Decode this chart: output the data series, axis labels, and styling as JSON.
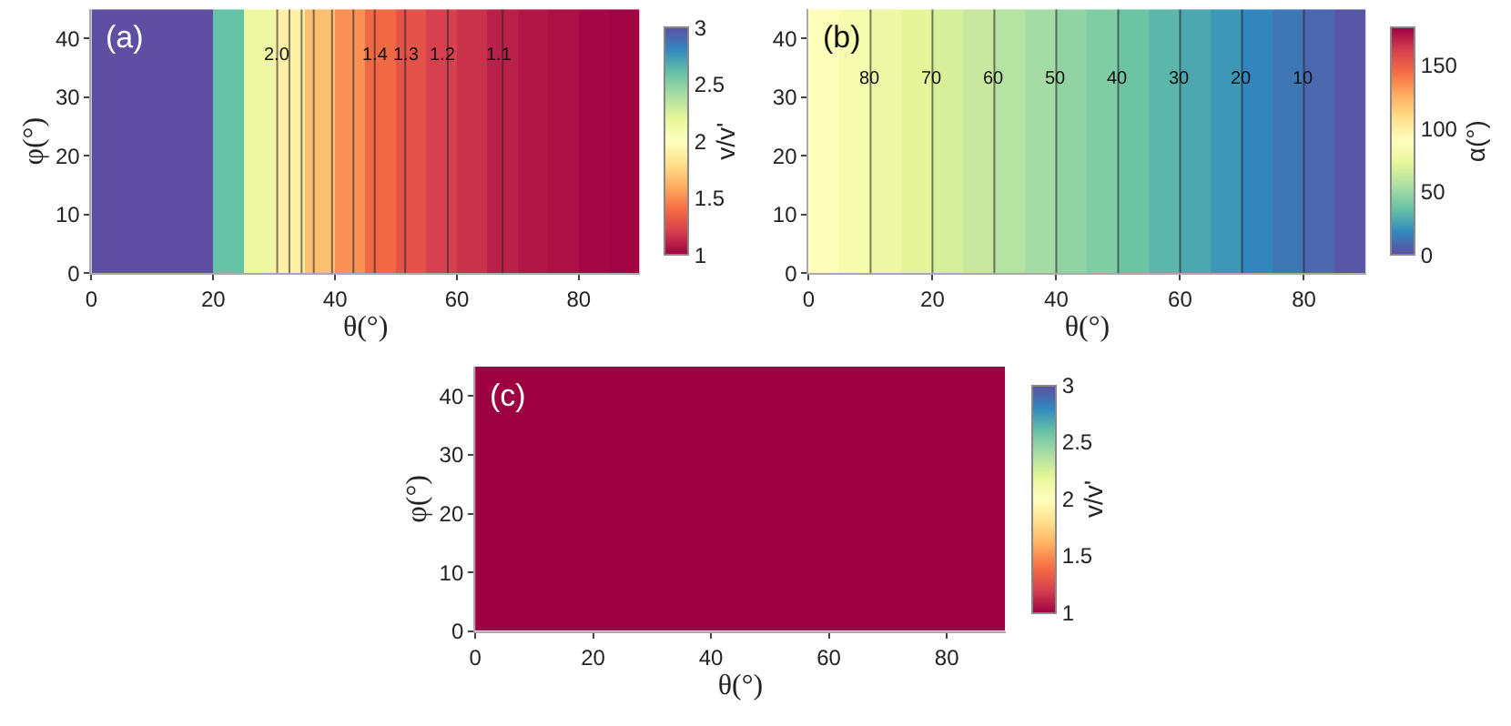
{
  "chart_data": [
    {
      "type": "heatmap",
      "annotations": [
        "(a)",
        {
          "text": "2.0",
          "x": 30.5,
          "y": 37
        },
        {
          "text": "1.4",
          "x": 46.5,
          "y": 37
        },
        {
          "text": "1.3",
          "x": 51.5,
          "y": 37
        },
        {
          "text": "1.2",
          "x": 57.5,
          "y": 37
        },
        {
          "text": "1.1",
          "x": 67,
          "y": 37
        }
      ],
      "xlabel": "θ(°)",
      "ylabel": "φ(°)",
      "clabel": "v/v'",
      "x": [
        2.5,
        7.5,
        12.5,
        17.5,
        22.5,
        27.5,
        32.5,
        37.5,
        42.5,
        47.5,
        52.5,
        57.5,
        62.5,
        67.5,
        72.5,
        77.5,
        82.5,
        87.5
      ],
      "cells": [
        [
          3,
          3,
          3,
          3,
          2.6,
          2.15,
          1.9,
          1.67,
          1.51,
          1.38,
          1.29,
          1.21,
          1.16,
          1.1,
          1.07,
          1.05,
          1.02,
          1.01
        ]
      ],
      "colors": [
        "#9e0142",
        "#d53e4f",
        "#f46d43",
        "#fdae61",
        "#fee08b",
        "#ffffbf",
        "#e6f598",
        "#abdda4",
        "#66c2a5",
        "#3288bd",
        "#5e4fa2"
      ],
      "xlim": [
        0,
        90
      ],
      "xticks": [
        0,
        20,
        40,
        60,
        80
      ],
      "ylim": [
        0,
        45
      ],
      "yticks": [
        0,
        10,
        20,
        30,
        40
      ],
      "clim": [
        1,
        3
      ],
      "cticks": [
        1,
        1.5,
        2,
        2.5,
        3
      ],
      "ref_lines": [
        {
          "axis": "x",
          "value": 30.5
        },
        {
          "axis": "x",
          "value": 32.5
        },
        {
          "axis": "x",
          "value": 34.5
        },
        {
          "axis": "x",
          "value": 36.5
        },
        {
          "axis": "x",
          "value": 39.5
        },
        {
          "axis": "x",
          "value": 43
        },
        {
          "axis": "x",
          "value": 46.5
        },
        {
          "axis": "x",
          "value": 51.5
        },
        {
          "axis": "x",
          "value": 58.5
        },
        {
          "axis": "x",
          "value": 67.5
        }
      ]
    },
    {
      "type": "heatmap",
      "annotations": [
        "(b)",
        {
          "text": "80",
          "x": 10,
          "y": 33
        },
        {
          "text": "70",
          "x": 20,
          "y": 33
        },
        {
          "text": "60",
          "x": 30,
          "y": 33
        },
        {
          "text": "50",
          "x": 40,
          "y": 33
        },
        {
          "text": "40",
          "x": 50,
          "y": 33
        },
        {
          "text": "30",
          "x": 60,
          "y": 33
        },
        {
          "text": "20",
          "x": 70,
          "y": 33
        },
        {
          "text": "10",
          "x": 80,
          "y": 33
        }
      ],
      "xlabel": "θ(°)",
      "clabel": "α(°)",
      "x": [
        2.5,
        7.5,
        12.5,
        17.5,
        22.5,
        27.5,
        32.5,
        37.5,
        42.5,
        47.5,
        52.5,
        57.5,
        62.5,
        67.5,
        72.5,
        77.5,
        82.5,
        87.5
      ],
      "cells": [
        [
          87.5,
          82.5,
          77.5,
          72.5,
          67.5,
          62.5,
          57.5,
          52.5,
          47.5,
          42.5,
          37.5,
          32.5,
          27.5,
          22.5,
          17.5,
          12.5,
          7.5,
          2.5
        ]
      ],
      "colors": [
        "#5e4fa2",
        "#3288bd",
        "#66c2a5",
        "#abdda4",
        "#e6f598",
        "#ffffbf",
        "#fee08b",
        "#fdae61",
        "#f46d43",
        "#d53e4f",
        "#9e0142"
      ],
      "xlim": [
        0,
        90
      ],
      "xticks": [
        0,
        20,
        40,
        60,
        80
      ],
      "ylim": [
        0,
        45
      ],
      "yticks": [
        0,
        10,
        20,
        30,
        40
      ],
      "clim": [
        0,
        180
      ],
      "cticks": [
        0,
        50,
        100,
        150
      ],
      "ref_lines": [
        {
          "axis": "x",
          "value": 10
        },
        {
          "axis": "x",
          "value": 20
        },
        {
          "axis": "x",
          "value": 30
        },
        {
          "axis": "x",
          "value": 40
        },
        {
          "axis": "x",
          "value": 50
        },
        {
          "axis": "x",
          "value": 60
        },
        {
          "axis": "x",
          "value": 70
        },
        {
          "axis": "x",
          "value": 80
        }
      ]
    },
    {
      "type": "heatmap",
      "annotations": [
        "(c)"
      ],
      "xlabel": "θ(°)",
      "ylabel": "φ(°)",
      "clabel": "v/v'",
      "x": [
        2.5,
        7.5,
        12.5,
        17.5,
        22.5,
        27.5,
        32.5,
        37.5,
        42.5,
        47.5,
        52.5,
        57.5,
        62.5,
        67.5,
        72.5,
        77.5,
        82.5,
        87.5
      ],
      "cells": [
        [
          1,
          1,
          1,
          1,
          1,
          1,
          1,
          1,
          1,
          1,
          1,
          1,
          1,
          1,
          1,
          1,
          1,
          1
        ]
      ],
      "colors": [
        "#9e0142",
        "#d53e4f",
        "#f46d43",
        "#fdae61",
        "#fee08b",
        "#ffffbf",
        "#e6f598",
        "#abdda4",
        "#66c2a5",
        "#3288bd",
        "#5e4fa2"
      ],
      "xlim": [
        0,
        90
      ],
      "xticks": [
        0,
        20,
        40,
        60,
        80
      ],
      "ylim": [
        0,
        45
      ],
      "yticks": [
        0,
        10,
        20,
        30,
        40
      ],
      "clim": [
        1,
        3
      ],
      "cticks": [
        1,
        1.5,
        2,
        2.5,
        3
      ]
    }
  ]
}
